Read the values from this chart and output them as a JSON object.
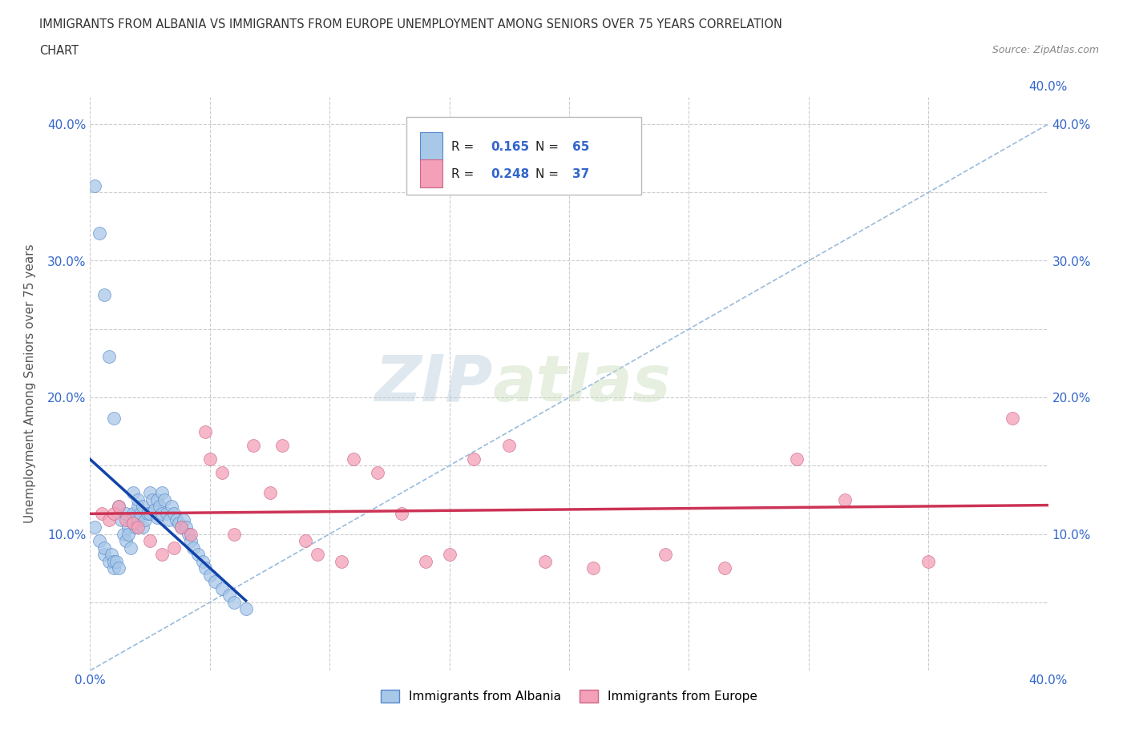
{
  "title_line1": "IMMIGRANTS FROM ALBANIA VS IMMIGRANTS FROM EUROPE UNEMPLOYMENT AMONG SENIORS OVER 75 YEARS CORRELATION",
  "title_line2": "CHART",
  "source_text": "Source: ZipAtlas.com",
  "ylabel": "Unemployment Among Seniors over 75 years",
  "xlim": [
    0.0,
    0.4
  ],
  "ylim": [
    0.0,
    0.42
  ],
  "x_ticks": [
    0.0,
    0.05,
    0.1,
    0.15,
    0.2,
    0.25,
    0.3,
    0.35,
    0.4
  ],
  "y_ticks": [
    0.0,
    0.05,
    0.1,
    0.15,
    0.2,
    0.25,
    0.3,
    0.35,
    0.4
  ],
  "watermark_zip": "ZIP",
  "watermark_atlas": "atlas",
  "albania_color": "#a8c8e8",
  "albania_edge_color": "#5588cc",
  "europe_color": "#f4a0b8",
  "europe_edge_color": "#cc6688",
  "albania_trend_color": "#1144aa",
  "europe_trend_color": "#cc3355",
  "diagonal_color": "#99bbdd",
  "R_albania": 0.165,
  "N_albania": 65,
  "R_europe": 0.248,
  "N_europe": 37,
  "legend_label_albania": "Immigrants from Albania",
  "legend_label_europe": "Immigrants from Europe",
  "albania_x": [
    0.002,
    0.004,
    0.006,
    0.006,
    0.008,
    0.009,
    0.01,
    0.01,
    0.011,
    0.012,
    0.012,
    0.013,
    0.014,
    0.015,
    0.015,
    0.016,
    0.016,
    0.017,
    0.018,
    0.018,
    0.019,
    0.02,
    0.02,
    0.02,
    0.021,
    0.022,
    0.022,
    0.023,
    0.024,
    0.025,
    0.025,
    0.026,
    0.027,
    0.028,
    0.028,
    0.029,
    0.03,
    0.03,
    0.031,
    0.032,
    0.033,
    0.034,
    0.035,
    0.036,
    0.037,
    0.038,
    0.039,
    0.04,
    0.041,
    0.042,
    0.043,
    0.045,
    0.047,
    0.048,
    0.05,
    0.052,
    0.055,
    0.058,
    0.06,
    0.065,
    0.002,
    0.004,
    0.006,
    0.008,
    0.01
  ],
  "albania_y": [
    0.105,
    0.095,
    0.085,
    0.09,
    0.08,
    0.085,
    0.075,
    0.08,
    0.08,
    0.075,
    0.12,
    0.11,
    0.1,
    0.095,
    0.115,
    0.105,
    0.1,
    0.09,
    0.13,
    0.115,
    0.105,
    0.11,
    0.12,
    0.125,
    0.115,
    0.105,
    0.12,
    0.11,
    0.115,
    0.115,
    0.13,
    0.125,
    0.118,
    0.112,
    0.125,
    0.12,
    0.115,
    0.13,
    0.125,
    0.115,
    0.11,
    0.12,
    0.115,
    0.11,
    0.108,
    0.105,
    0.11,
    0.105,
    0.1,
    0.095,
    0.09,
    0.085,
    0.08,
    0.075,
    0.07,
    0.065,
    0.06,
    0.055,
    0.05,
    0.045,
    0.355,
    0.32,
    0.275,
    0.23,
    0.185
  ],
  "europe_x": [
    0.005,
    0.008,
    0.01,
    0.012,
    0.015,
    0.018,
    0.02,
    0.025,
    0.03,
    0.035,
    0.038,
    0.042,
    0.048,
    0.05,
    0.055,
    0.06,
    0.068,
    0.075,
    0.08,
    0.09,
    0.095,
    0.105,
    0.11,
    0.12,
    0.13,
    0.14,
    0.15,
    0.16,
    0.175,
    0.19,
    0.21,
    0.24,
    0.265,
    0.295,
    0.315,
    0.35,
    0.385
  ],
  "europe_y": [
    0.115,
    0.11,
    0.115,
    0.12,
    0.11,
    0.108,
    0.105,
    0.095,
    0.085,
    0.09,
    0.105,
    0.1,
    0.175,
    0.155,
    0.145,
    0.1,
    0.165,
    0.13,
    0.165,
    0.095,
    0.085,
    0.08,
    0.155,
    0.145,
    0.115,
    0.08,
    0.085,
    0.155,
    0.165,
    0.08,
    0.075,
    0.085,
    0.075,
    0.155,
    0.125,
    0.08,
    0.185
  ],
  "background_color": "#ffffff",
  "grid_color": "#cccccc",
  "title_color": "#333333",
  "tick_label_color": "#3366cc",
  "source_color": "#888888"
}
